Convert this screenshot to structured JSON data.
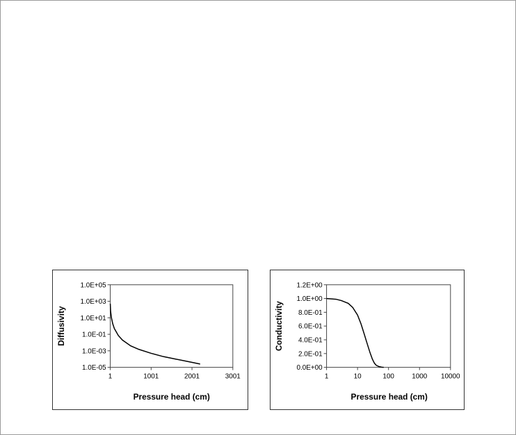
{
  "chart_data": [
    {
      "type": "line",
      "title": "",
      "xlabel": "Pressure head (cm)",
      "ylabel": "Diffusivity",
      "xscale": "linear",
      "yscale": "log",
      "xlim": [
        1,
        3001
      ],
      "ylim": [
        1e-05,
        100000
      ],
      "x_ticks": [
        "1",
        "1001",
        "2001",
        "3001"
      ],
      "x_tick_values": [
        1,
        1001,
        2001,
        3001
      ],
      "y_ticks": [
        "1.0E-05",
        "1.0E-03",
        "1.0E-01",
        "1.0E+01",
        "1.0E+03",
        "1.0E+05"
      ],
      "y_tick_values": [
        1e-05,
        0.001,
        0.1,
        10,
        1000,
        100000
      ],
      "grid": false,
      "series": [
        {
          "x": [
            1,
            10,
            30,
            60,
            100,
            200,
            300,
            500,
            700,
            1000,
            1300,
            1600,
            1900,
            2201
          ],
          "y": [
            500,
            60,
            10,
            2,
            0.5,
            0.07,
            0.02,
            0.004,
            0.0015,
            0.0005,
            0.0002,
            0.0001,
            5e-05,
            2.5e-05
          ]
        }
      ]
    },
    {
      "type": "line",
      "title": "",
      "xlabel": "Pressure head (cm)",
      "ylabel": "Conductivity",
      "xscale": "log",
      "yscale": "linear",
      "xlim": [
        1,
        10000
      ],
      "ylim": [
        0,
        1.2
      ],
      "x_ticks": [
        "1",
        "10",
        "100",
        "1000",
        "10000"
      ],
      "x_tick_values": [
        1,
        10,
        100,
        1000,
        10000
      ],
      "y_ticks": [
        "0.0E+00",
        "2.0E-01",
        "4.0E-01",
        "6.0E-01",
        "8.0E-01",
        "1.0E+00",
        "1.2E+00"
      ],
      "y_tick_values": [
        0,
        0.2,
        0.4,
        0.6,
        0.8,
        1.0,
        1.2
      ],
      "grid": false,
      "series": [
        {
          "x": [
            1,
            2,
            3,
            5,
            7,
            10,
            13,
            16,
            20,
            25,
            30,
            35,
            40,
            50,
            60,
            70
          ],
          "y": [
            1.0,
            0.99,
            0.97,
            0.93,
            0.87,
            0.76,
            0.63,
            0.5,
            0.36,
            0.22,
            0.12,
            0.06,
            0.03,
            0.01,
            0.002,
            0.0
          ]
        }
      ]
    }
  ]
}
